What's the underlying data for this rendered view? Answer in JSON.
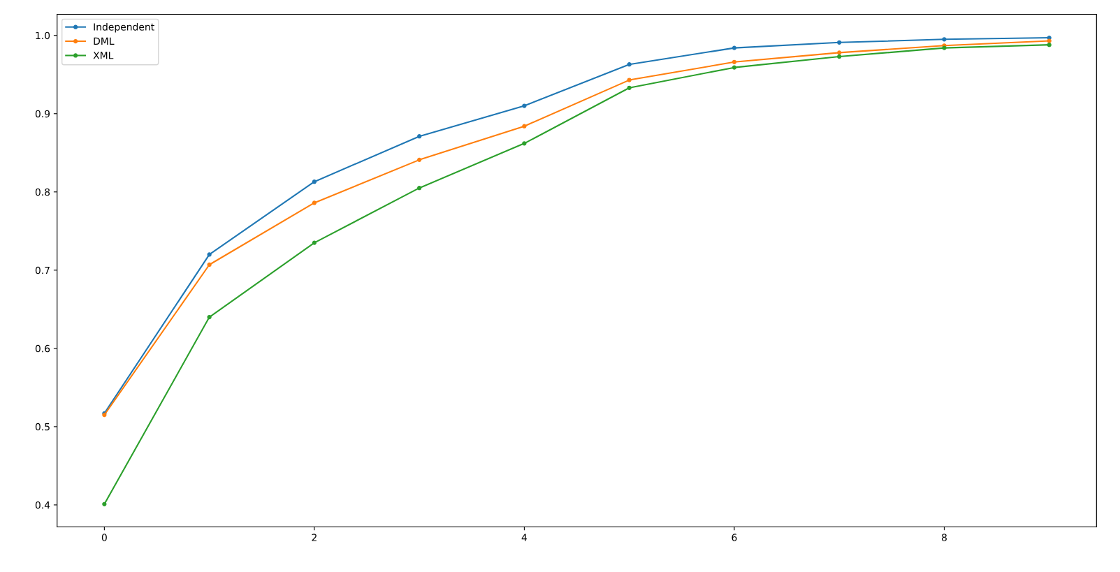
{
  "chart_data": {
    "type": "line",
    "x": [
      0,
      1,
      2,
      3,
      4,
      5,
      6,
      7,
      8,
      9
    ],
    "series": [
      {
        "name": "Independent",
        "color": "#1f77b4",
        "values": [
          0.517,
          0.72,
          0.813,
          0.871,
          0.91,
          0.963,
          0.984,
          0.991,
          0.995,
          0.997
        ]
      },
      {
        "name": "DML",
        "color": "#ff7f0e",
        "values": [
          0.515,
          0.707,
          0.786,
          0.841,
          0.884,
          0.943,
          0.966,
          0.978,
          0.987,
          0.993
        ]
      },
      {
        "name": "XML",
        "color": "#2ca02c",
        "values": [
          0.401,
          0.64,
          0.735,
          0.805,
          0.862,
          0.933,
          0.959,
          0.973,
          0.984,
          0.988
        ]
      }
    ],
    "xlim": [
      -0.45,
      9.45
    ],
    "xticks": [
      0,
      2,
      4,
      6,
      8
    ],
    "ylim": [
      0.372,
      1.027
    ],
    "yticks": [
      0.4,
      0.5,
      0.6,
      0.7,
      0.8,
      0.9,
      {
        "value": 1,
        "label": "1.0"
      }
    ],
    "marker": "circle",
    "line_style": "solid",
    "grid": false,
    "legend": "top left"
  }
}
